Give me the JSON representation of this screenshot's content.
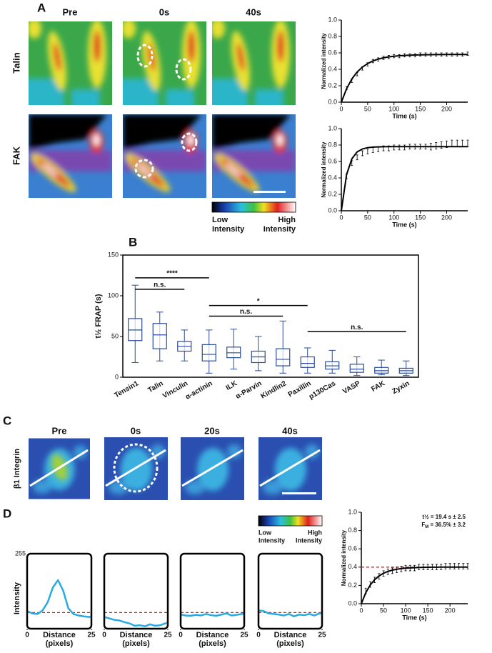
{
  "figure": {
    "panels": [
      "A",
      "B",
      "C",
      "D"
    ],
    "a_columns": [
      "Pre",
      "0s",
      "40s"
    ],
    "a_rows": [
      "Talin",
      "FAK"
    ],
    "c_columns": [
      "Pre",
      "0s",
      "20s",
      "40s"
    ],
    "c_row": "β1 Integrin",
    "colorbar_low": [
      "Low",
      "Intensity"
    ],
    "colorbar_high": [
      "High",
      "Intensity"
    ]
  },
  "chart_data": [
    {
      "type": "frap",
      "ylabel": "Normalized intensity",
      "xlabel": "Time (s)",
      "xlim": [
        0,
        240
      ],
      "xticks": [
        0,
        50,
        100,
        150,
        200
      ],
      "ylim": [
        0,
        1
      ],
      "yticks": [
        {
          "value": 0,
          "label": "0.0"
        },
        0.2,
        0.4,
        0.6,
        0.8,
        {
          "value": 1,
          "label": "1.0"
        }
      ],
      "x": [
        0,
        10,
        20,
        30,
        40,
        50,
        60,
        70,
        80,
        90,
        100,
        110,
        120,
        130,
        140,
        150,
        160,
        170,
        180,
        190,
        200,
        210,
        220,
        230,
        240
      ],
      "fit": [
        0,
        0.164,
        0.282,
        0.367,
        0.427,
        0.47,
        0.502,
        0.524,
        0.54,
        0.551,
        0.559,
        0.565,
        0.569,
        0.572,
        0.574,
        0.576,
        0.577,
        0.578,
        0.579,
        0.579,
        0.58,
        0.58,
        0.58,
        0.58,
        0.58
      ],
      "points": [
        0,
        0.17,
        0.26,
        0.34,
        0.41,
        0.46,
        0.5,
        0.52,
        0.54,
        0.55,
        0.56,
        0.56,
        0.57,
        0.57,
        0.57,
        0.58,
        0.58,
        0.58,
        0.58,
        0.58,
        0.58,
        0.58,
        0.58,
        0.58,
        0.59
      ],
      "errors": [
        0,
        0.02,
        0.02,
        0.02,
        0.02,
        0.02,
        0.02,
        0.02,
        0.02,
        0.02,
        0.02,
        0.02,
        0.02,
        0.02,
        0.02,
        0.02,
        0.02,
        0.02,
        0.02,
        0.02,
        0.02,
        0.02,
        0.02,
        0.02,
        0.02
      ]
    },
    {
      "type": "frap",
      "ylabel": "Normalized intensity",
      "xlabel": "Time (s)",
      "xlim": [
        0,
        240
      ],
      "xticks": [
        0,
        50,
        100,
        150,
        200
      ],
      "ylim": [
        0,
        1
      ],
      "yticks": [
        {
          "value": 0,
          "label": "0.0"
        },
        0.2,
        0.4,
        0.6,
        0.8,
        {
          "value": 1,
          "label": "1.0"
        }
      ],
      "x": [
        0,
        10,
        20,
        30,
        40,
        50,
        60,
        70,
        80,
        90,
        100,
        110,
        120,
        130,
        140,
        150,
        160,
        170,
        180,
        190,
        200,
        210,
        220,
        230,
        240
      ],
      "fit": [
        0,
        0.441,
        0.633,
        0.716,
        0.752,
        0.768,
        0.775,
        0.777,
        0.779,
        0.78,
        0.78,
        0.78,
        0.78,
        0.78,
        0.78,
        0.78,
        0.78,
        0.78,
        0.78,
        0.78,
        0.78,
        0.78,
        0.78,
        0.78,
        0.78
      ],
      "points": [
        0,
        0.42,
        0.58,
        0.65,
        0.7,
        0.72,
        0.74,
        0.75,
        0.76,
        0.76,
        0.77,
        0.77,
        0.77,
        0.78,
        0.78,
        0.78,
        0.78,
        0.78,
        0.79,
        0.8,
        0.81,
        0.82,
        0.82,
        0.82,
        0.82
      ],
      "errors": [
        0,
        0.03,
        0.03,
        0.03,
        0.03,
        0.03,
        0.03,
        0.03,
        0.03,
        0.03,
        0.03,
        0.03,
        0.03,
        0.03,
        0.03,
        0.03,
        0.03,
        0.04,
        0.04,
        0.04,
        0.04,
        0.04,
        0.04,
        0.04,
        0.04
      ]
    },
    {
      "type": "box",
      "ylabel": "t½ FRAP (s)",
      "categories": [
        "Tensin1",
        "Talin",
        "Vinculin",
        "α-actinin",
        "ILK",
        "α-Parvin",
        "Kindlin2",
        "Paxillin",
        "p130Cas",
        "VASP",
        "FAK",
        "Zyxin"
      ],
      "min": [
        18,
        20,
        20,
        5,
        10,
        8,
        5,
        5,
        5,
        2,
        3,
        2
      ],
      "q1": [
        45,
        35,
        32,
        20,
        24,
        18,
        14,
        12,
        10,
        6,
        5,
        5
      ],
      "median": [
        58,
        52,
        38,
        28,
        30,
        25,
        22,
        17,
        14,
        10,
        8,
        8
      ],
      "q3": [
        72,
        66,
        44,
        40,
        37,
        32,
        35,
        25,
        19,
        16,
        12,
        11
      ],
      "max": [
        113,
        80,
        58,
        58,
        59,
        50,
        69,
        36,
        33,
        25,
        21,
        20
      ],
      "ylim": [
        0,
        150
      ],
      "yticks": [
        0,
        50,
        100,
        150
      ],
      "color": "#2b4c9b",
      "brackets": [
        {
          "label": "****",
          "from": "Tensin1",
          "to": "α-actinin",
          "y": 122
        },
        {
          "label": "n.s.",
          "from": "Tensin1",
          "to": "Vinculin",
          "y": 108
        },
        {
          "label": "*",
          "from": "α-actinin",
          "to": "Paxillin",
          "y": 88
        },
        {
          "label": "n.s.",
          "from": "α-actinin",
          "to": "Kindlin2",
          "y": 75
        },
        {
          "label": "n.s.",
          "from": "Paxillin",
          "to": "Zyxin",
          "y": 56
        }
      ]
    },
    {
      "type": "frap",
      "ylabel": "Normalized intensity",
      "xlabel": "Time (s)",
      "xlim": [
        0,
        240
      ],
      "xticks": [
        0,
        50,
        100,
        150,
        200
      ],
      "ylim": [
        0,
        1
      ],
      "yticks": [
        {
          "value": 0,
          "label": "0.0"
        },
        0.2,
        0.4,
        0.6,
        0.8,
        {
          "value": 1,
          "label": "1.0"
        }
      ],
      "x": [
        0,
        10,
        20,
        30,
        40,
        50,
        60,
        70,
        80,
        90,
        100,
        110,
        120,
        130,
        140,
        150,
        160,
        170,
        180,
        190,
        200,
        210,
        220,
        230,
        240
      ],
      "fit": [
        0,
        0.12,
        0.204,
        0.263,
        0.304,
        0.333,
        0.353,
        0.367,
        0.377,
        0.384,
        0.389,
        0.392,
        0.394,
        0.396,
        0.397,
        0.398,
        0.399,
        0.399,
        0.4,
        0.4,
        0.4,
        0.4,
        0.4,
        0.4,
        0.4
      ],
      "points": [
        0,
        0.14,
        0.21,
        0.26,
        0.3,
        0.33,
        0.35,
        0.36,
        0.37,
        0.38,
        0.39,
        0.39,
        0.39,
        0.4,
        0.4,
        0.4,
        0.4,
        0.4,
        0.4,
        0.41,
        0.41,
        0.41,
        0.41,
        0.41,
        0.41
      ],
      "errors": [
        0,
        0.03,
        0.03,
        0.03,
        0.03,
        0.03,
        0.03,
        0.03,
        0.03,
        0.03,
        0.03,
        0.03,
        0.03,
        0.03,
        0.03,
        0.03,
        0.03,
        0.03,
        0.03,
        0.03,
        0.03,
        0.03,
        0.03,
        0.03,
        0.03
      ],
      "ref_line": 0.4,
      "ref_color": "#d42020",
      "annotation": "t½ = 19.4 s ± 2.5",
      "annotation_fm": {
        "base": "F",
        "sub": "M",
        "rest": " = 36.5% ± 3.2"
      }
    },
    {
      "type": "profile",
      "ylabel": "Intensity",
      "xlabel": [
        "Distance",
        "(pixels)"
      ],
      "x": [
        0,
        2,
        4,
        6,
        8,
        10,
        12,
        14,
        16,
        18,
        20,
        22,
        24,
        25
      ],
      "values": [
        60,
        52,
        50,
        62,
        90,
        140,
        165,
        130,
        70,
        50,
        45,
        42,
        40,
        40
      ],
      "xlim": [
        0,
        25
      ],
      "xticks": [
        0,
        25
      ],
      "ylim": [
        0,
        255
      ],
      "yticks": [
        255
      ],
      "color": "#29abe2",
      "ref_line": 55,
      "ref_color": "#d42020"
    },
    {
      "type": "profile",
      "xlabel": [
        "Distance",
        "(pixels)"
      ],
      "x": [
        0,
        2,
        4,
        6,
        8,
        10,
        12,
        14,
        16,
        18,
        20,
        22,
        24,
        25
      ],
      "values": [
        40,
        35,
        30,
        28,
        22,
        18,
        10,
        12,
        8,
        15,
        10,
        12,
        18,
        20
      ],
      "xlim": [
        0,
        25
      ],
      "xticks": [
        0,
        25
      ],
      "ylim": [
        0,
        255
      ],
      "color": "#29abe2",
      "ref_line": 55,
      "ref_color": "#d42020"
    },
    {
      "type": "profile",
      "xlabel": [
        "Distance",
        "(pixels)"
      ],
      "x": [
        0,
        2,
        4,
        6,
        8,
        10,
        12,
        14,
        16,
        18,
        20,
        22,
        24,
        25
      ],
      "values": [
        48,
        45,
        44,
        47,
        45,
        50,
        46,
        44,
        48,
        52,
        45,
        47,
        50,
        50
      ],
      "xlim": [
        0,
        25
      ],
      "xticks": [
        0,
        25
      ],
      "ylim": [
        0,
        255
      ],
      "color": "#29abe2",
      "ref_line": 55,
      "ref_color": "#d42020"
    },
    {
      "type": "profile",
      "xlabel": [
        "Distance",
        "(pixels)"
      ],
      "x": [
        0,
        2,
        4,
        6,
        8,
        10,
        12,
        14,
        16,
        18,
        20,
        22,
        24,
        25
      ],
      "values": [
        62,
        60,
        52,
        50,
        48,
        45,
        50,
        42,
        48,
        46,
        50,
        45,
        52,
        52
      ],
      "xlim": [
        0,
        25
      ],
      "xticks": [
        0,
        25
      ],
      "ylim": [
        0,
        255
      ],
      "color": "#29abe2",
      "ref_line": 55,
      "ref_color": "#d42020"
    }
  ]
}
